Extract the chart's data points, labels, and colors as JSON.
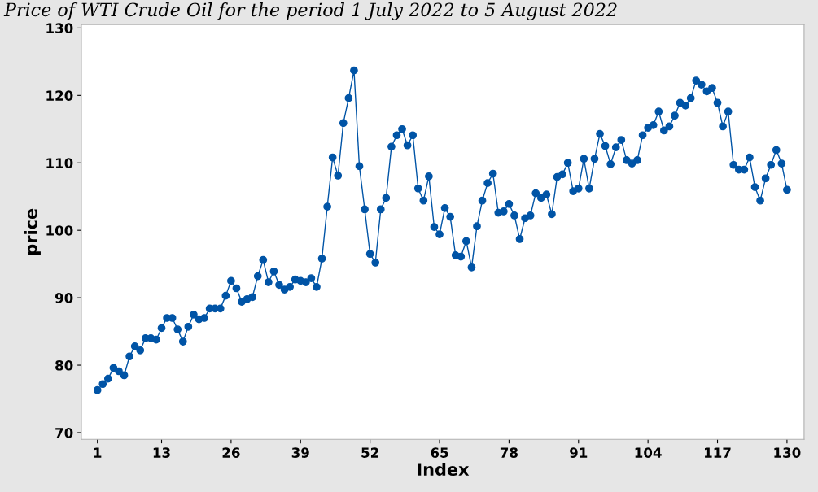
{
  "chart_data": {
    "type": "line",
    "title": "Price of WTI Crude Oil for the period 1 July 2022 to 5 August 2022",
    "xlabel": "Index",
    "ylabel": "price",
    "x": [
      1,
      2,
      3,
      4,
      5,
      6,
      7,
      8,
      9,
      10,
      11,
      12,
      13,
      14,
      15,
      16,
      17,
      18,
      19,
      20,
      21,
      22,
      23,
      24,
      25,
      26,
      27,
      28,
      29,
      30,
      31,
      32,
      33,
      34,
      35,
      36,
      37,
      38,
      39,
      40,
      41,
      42,
      43,
      44,
      45,
      46,
      47,
      48,
      49,
      50,
      51,
      52,
      53,
      54,
      55,
      56,
      57,
      58,
      59,
      60,
      61,
      62,
      63,
      64,
      65,
      66,
      67,
      68,
      69,
      70,
      71,
      72,
      73,
      74,
      75,
      76,
      77,
      78,
      79,
      80,
      81,
      82,
      83,
      84,
      85,
      86,
      87,
      88,
      89,
      90,
      91,
      92,
      93,
      94,
      95,
      96,
      97,
      98,
      99,
      100,
      101,
      102,
      103,
      104,
      105,
      106,
      107,
      108,
      109,
      110,
      111,
      112,
      113,
      114,
      115,
      116,
      117,
      118,
      119,
      120,
      121,
      122,
      123,
      124,
      125,
      126,
      127,
      128,
      129,
      130
    ],
    "series": [
      {
        "color": "#0054a6",
        "values": [
          76.3,
          77.2,
          78.0,
          79.6,
          79.1,
          78.5,
          81.3,
          82.8,
          82.2,
          84.0,
          84.0,
          83.8,
          85.5,
          87.0,
          87.0,
          85.3,
          83.5,
          85.7,
          87.5,
          86.8,
          87.0,
          88.4,
          88.4,
          88.4,
          90.3,
          92.5,
          91.4,
          89.4,
          89.8,
          90.1,
          93.2,
          95.6,
          92.3,
          93.9,
          91.9,
          91.2,
          91.6,
          92.7,
          92.5,
          92.3,
          92.9,
          91.6,
          95.8,
          103.5,
          110.8,
          108.1,
          115.9,
          119.6,
          123.7,
          109.5,
          103.1,
          96.5,
          95.2,
          103.1,
          104.8,
          112.4,
          114.1,
          115.0,
          112.6,
          114.1,
          106.2,
          104.4,
          108.0,
          100.5,
          99.4,
          103.3,
          102.0,
          96.3,
          96.1,
          98.4,
          94.5,
          100.6,
          104.4,
          107.0,
          108.4,
          102.6,
          102.8,
          103.9,
          102.2,
          98.7,
          101.8,
          102.2,
          105.5,
          104.8,
          105.3,
          102.4,
          107.9,
          108.3,
          110.0,
          105.8,
          106.2,
          110.6,
          106.2,
          110.6,
          114.3,
          112.5,
          109.8,
          112.3,
          113.4,
          110.4,
          109.9,
          110.4,
          114.1,
          115.2,
          115.6,
          117.6,
          114.8,
          115.4,
          117.0,
          118.9,
          118.5,
          119.6,
          122.2,
          121.6,
          120.6,
          121.1,
          118.9,
          115.4,
          117.6,
          109.7,
          109.0,
          109.0,
          110.8,
          106.4,
          104.4,
          107.7,
          109.7,
          111.9,
          109.9,
          106.0
        ]
      }
    ],
    "xlim": [
      -2,
      133.2
    ],
    "xticks": [
      1,
      13,
      26,
      39,
      52,
      65,
      78,
      91,
      104,
      117,
      130
    ],
    "ylim": [
      69,
      130.5
    ],
    "yticks": [
      70,
      80,
      90,
      100,
      110,
      120,
      130
    ],
    "marker": "circle",
    "line_style": "solid",
    "grid": false,
    "legend": false
  }
}
